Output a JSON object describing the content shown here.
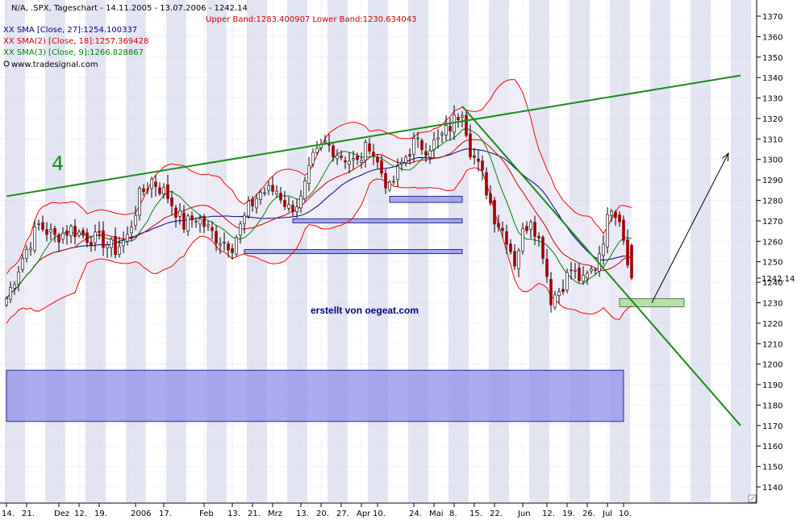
{
  "header": {
    "title_line": "N/A, .SPX, Tageschart - 14.11.2005 - 13.07.2006 - 1242.14",
    "bands_line": "Upper Band:1283.400907 Lower Band:1230.634043",
    "sma1_line": "XX SMA [Close, 27]:1254.100337",
    "sma2_line": "XX SMA(2) [Close, 18]:1257.369428",
    "sma3_line": "XX SMA(3) [Close, 9]:1266.828867",
    "source_line": "www.tradesignal.com"
  },
  "annotations": {
    "wave_label": "4",
    "credit": "erstellt von oegeat.com",
    "last_price": "1242.14"
  },
  "colors": {
    "background": "#ffffff",
    "stripe": "#e3e5f3",
    "up_candle": "#ffffff",
    "down_candle": "#a00000",
    "candle_wick": "#000000",
    "bollinger": "#ff0000",
    "sma27": "#000080",
    "sma18": "#cc0000",
    "sma9": "#008000",
    "trendline": "#1b8a1b",
    "zone_fill": "#8f8fe8",
    "zone_stroke": "#2a2a8c",
    "target_box": "#b8e0a8",
    "credit_text": "#000080",
    "bands_text": "#cc0000",
    "sma3_text": "#008000",
    "sma1_text": "#000080"
  },
  "chart_data": {
    "type": "candlestick",
    "title": "N/A, .SPX, Tageschart - 14.11.2005 - 13.07.2006 - 1242.14",
    "ylim": [
      1133,
      1380
    ],
    "y_ticks": [
      1140,
      1150,
      1160,
      1170,
      1180,
      1190,
      1200,
      1210,
      1220,
      1230,
      1240,
      1250,
      1260,
      1270,
      1280,
      1290,
      1300,
      1310,
      1320,
      1330,
      1340,
      1350,
      1360,
      1370
    ],
    "x_ticks": [
      {
        "label": "14.",
        "bar": 0
      },
      {
        "label": "21.",
        "bar": 5
      },
      {
        "label": "Dez",
        "bar": 13
      },
      {
        "label": "12.",
        "bar": 18
      },
      {
        "label": "19.",
        "bar": 23
      },
      {
        "label": "2006",
        "bar": 32
      },
      {
        "label": "17.",
        "bar": 39
      },
      {
        "label": "Feb",
        "bar": 49
      },
      {
        "label": "13.",
        "bar": 56
      },
      {
        "label": "21.",
        "bar": 61
      },
      {
        "label": "Mrz",
        "bar": 66
      },
      {
        "label": "13.",
        "bar": 73
      },
      {
        "label": "20.",
        "bar": 78
      },
      {
        "label": "27.",
        "bar": 83
      },
      {
        "label": "Apr",
        "bar": 88
      },
      {
        "label": "10.",
        "bar": 92
      },
      {
        "label": "24.",
        "bar": 101
      },
      {
        "label": "Mai",
        "bar": 106
      },
      {
        "label": "8.",
        "bar": 111
      },
      {
        "label": "15.",
        "bar": 116
      },
      {
        "label": "22.",
        "bar": 121
      },
      {
        "label": "Jun",
        "bar": 128
      },
      {
        "label": "12.",
        "bar": 134
      },
      {
        "label": "19.",
        "bar": 139
      },
      {
        "label": "26.",
        "bar": 144
      },
      {
        "label": "Jul",
        "bar": 149
      },
      {
        "label": "10.",
        "bar": 153
      }
    ],
    "bars": 156,
    "close_anchors": [
      [
        0,
        1232
      ],
      [
        4,
        1252
      ],
      [
        8,
        1268
      ],
      [
        12,
        1262
      ],
      [
        16,
        1266
      ],
      [
        20,
        1262
      ],
      [
        24,
        1260
      ],
      [
        27,
        1256
      ],
      [
        30,
        1262
      ],
      [
        33,
        1282
      ],
      [
        36,
        1290
      ],
      [
        40,
        1282
      ],
      [
        44,
        1268
      ],
      [
        47,
        1272
      ],
      [
        52,
        1262
      ],
      [
        56,
        1258
      ],
      [
        60,
        1276
      ],
      [
        63,
        1284
      ],
      [
        67,
        1285
      ],
      [
        70,
        1276
      ],
      [
        73,
        1280
      ],
      [
        76,
        1300
      ],
      [
        79,
        1308
      ],
      [
        83,
        1302
      ],
      [
        87,
        1298
      ],
      [
        90,
        1308
      ],
      [
        92,
        1298
      ],
      [
        95,
        1285
      ],
      [
        98,
        1298
      ],
      [
        101,
        1308
      ],
      [
        104,
        1306
      ],
      [
        107,
        1309
      ],
      [
        110,
        1316
      ],
      [
        113,
        1325
      ],
      [
        115,
        1305
      ],
      [
        118,
        1292
      ],
      [
        121,
        1272
      ],
      [
        124,
        1262
      ],
      [
        126,
        1250
      ],
      [
        128,
        1264
      ],
      [
        130,
        1272
      ],
      [
        133,
        1255
      ],
      [
        135,
        1232
      ],
      [
        137,
        1236
      ],
      [
        140,
        1246
      ],
      [
        143,
        1240
      ],
      [
        146,
        1248
      ],
      [
        148,
        1262
      ],
      [
        150,
        1278
      ],
      [
        152,
        1272
      ],
      [
        153,
        1262
      ],
      [
        155,
        1242.14
      ]
    ],
    "indicators": {
      "sma27_last": 1254.100337,
      "sma18_last": 1257.369428,
      "sma9_last": 1266.828867,
      "upper_band_last": 1283.400907,
      "lower_band_last": 1230.634043
    },
    "drawings": {
      "rising_trendline": {
        "start": [
          0,
          1282
        ],
        "end": [
          182,
          1341
        ]
      },
      "falling_trendline": {
        "start": [
          113,
          1326
        ],
        "end": [
          182,
          1170
        ]
      },
      "arrow": {
        "start": [
          160,
          1230
        ],
        "end": [
          179,
          1303
        ]
      },
      "support_zones": [
        {
          "bar_start": 59,
          "bar_end": 113,
          "top": 1256,
          "bottom": 1254
        },
        {
          "bar_start": 71,
          "bar_end": 113,
          "top": 1271,
          "bottom": 1269
        },
        {
          "bar_start": 95,
          "bar_end": 113,
          "top": 1282,
          "bottom": 1279
        },
        {
          "bar_start": 0,
          "bar_end": 153,
          "top": 1197,
          "bottom": 1172
        }
      ],
      "target_box": {
        "bar_start": 152,
        "bar_end": 168,
        "top": 1232,
        "bottom": 1228
      }
    }
  }
}
